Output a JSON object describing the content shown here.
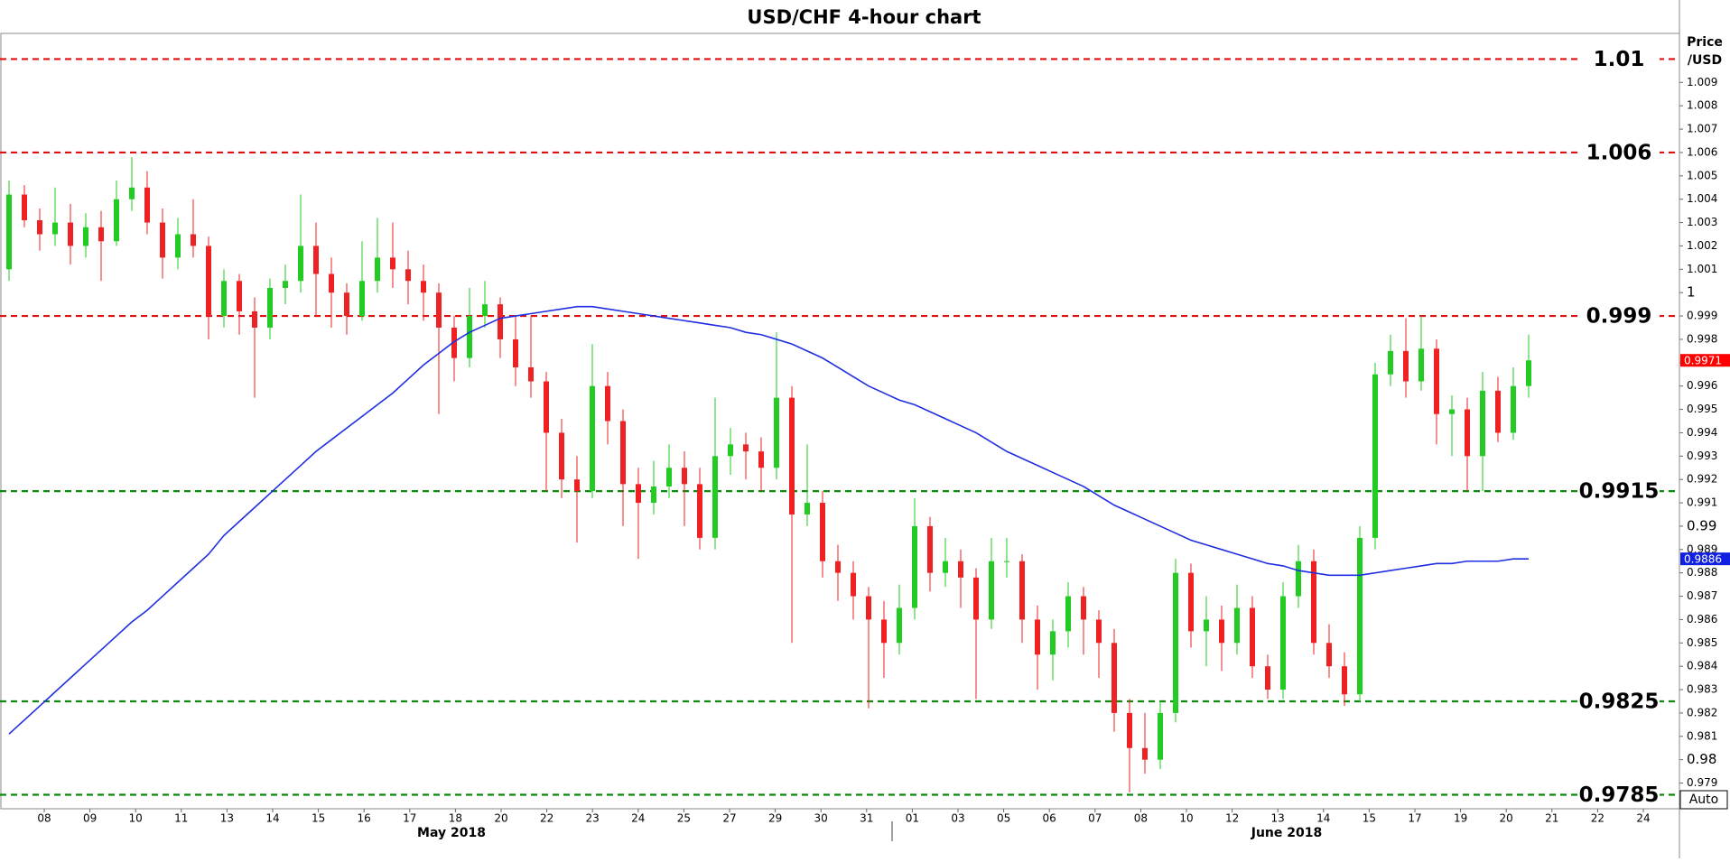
{
  "chart_data": {
    "type": "candlestick",
    "title": "USD/CHF 4-hour chart",
    "y_label_lines": [
      "Price",
      "/USD"
    ],
    "categories": [
      "08",
      "09",
      "10",
      "11",
      "13",
      "14",
      "15",
      "16",
      "17",
      "18",
      "20",
      "22",
      "23",
      "24",
      "25",
      "27",
      "29",
      "30",
      "31",
      "01",
      "03",
      "05",
      "06",
      "07",
      "08",
      "10",
      "12",
      "13",
      "14",
      "15",
      "17",
      "19",
      "20",
      "21",
      "22",
      "24"
    ],
    "months": [
      "May 2018",
      "June 2018"
    ],
    "up_color": "#22cc22",
    "down_color": "#ee2222",
    "open": [
      1.001,
      1.0042,
      1.0031,
      1.0025,
      1.003,
      1.002,
      1.0028,
      1.0022,
      1.004,
      1.0045,
      1.003,
      1.0015,
      1.0025,
      1.002,
      0.999,
      1.0005,
      0.9992,
      0.9985,
      1.0002,
      1.0005,
      1.002,
      1.0008,
      1.0,
      0.999,
      1.0005,
      1.0015,
      1.001,
      1.0005,
      1.0,
      0.9985,
      0.9972,
      0.999,
      0.9995,
      0.998,
      0.9968,
      0.9962,
      0.994,
      0.992,
      0.9915,
      0.996,
      0.9945,
      0.9918,
      0.991,
      0.9917,
      0.9925,
      0.9918,
      0.9895,
      0.993,
      0.9935,
      0.9932,
      0.9925,
      0.9955,
      0.9905,
      0.991,
      0.9885,
      0.988,
      0.987,
      0.986,
      0.985,
      0.9865,
      0.99,
      0.988,
      0.9885,
      0.9878,
      0.986,
      0.9885,
      0.9885,
      0.986,
      0.9845,
      0.9855,
      0.987,
      0.986,
      0.985,
      0.982,
      0.9805,
      0.98,
      0.982,
      0.988,
      0.9855,
      0.986,
      0.985,
      0.9865,
      0.984,
      0.983,
      0.987,
      0.9885,
      0.985,
      0.984,
      0.9828,
      0.9895,
      0.9965,
      0.9975,
      0.9962,
      0.9976,
      0.9948,
      0.995,
      0.993,
      0.9958,
      0.994,
      0.996
    ],
    "high": [
      1.0048,
      1.0046,
      1.0036,
      1.0045,
      1.0038,
      1.0034,
      1.0035,
      1.0048,
      1.0058,
      1.0052,
      1.0036,
      1.0032,
      1.004,
      1.0024,
      1.001,
      1.0008,
      0.9998,
      1.0006,
      1.0012,
      1.0042,
      1.003,
      1.0015,
      1.0004,
      1.0022,
      1.0032,
      1.003,
      1.0018,
      1.0012,
      1.0004,
      0.999,
      1.0002,
      1.0005,
      0.9998,
      0.999,
      0.999,
      0.9966,
      0.9946,
      0.993,
      0.9978,
      0.9966,
      0.995,
      0.9925,
      0.9928,
      0.9935,
      0.9932,
      0.9925,
      0.9955,
      0.9942,
      0.994,
      0.9938,
      0.9983,
      0.996,
      0.9935,
      0.9915,
      0.9892,
      0.9885,
      0.9874,
      0.9868,
      0.9875,
      0.9912,
      0.9904,
      0.9895,
      0.989,
      0.9882,
      0.9895,
      0.9895,
      0.9888,
      0.9866,
      0.986,
      0.9876,
      0.9874,
      0.9864,
      0.9856,
      0.9826,
      0.982,
      0.9825,
      0.9886,
      0.9884,
      0.987,
      0.9866,
      0.9875,
      0.987,
      0.9845,
      0.9876,
      0.9892,
      0.989,
      0.9858,
      0.9846,
      0.99,
      0.997,
      0.9982,
      0.9989,
      0.999,
      0.998,
      0.9956,
      0.9955,
      0.9966,
      0.9964,
      0.9968,
      0.9982
    ],
    "low": [
      1.0005,
      1.0028,
      1.0018,
      1.002,
      1.0012,
      1.0015,
      1.0005,
      1.002,
      1.0035,
      1.0025,
      1.0006,
      1.001,
      1.0015,
      0.998,
      0.9985,
      0.9982,
      0.9955,
      0.998,
      0.9995,
      1.0,
      0.999,
      0.9985,
      0.9982,
      0.9988,
      1.0,
      1.0002,
      0.9995,
      0.9988,
      0.9948,
      0.9962,
      0.9968,
      0.9985,
      0.9972,
      0.996,
      0.9955,
      0.9915,
      0.9912,
      0.9893,
      0.9912,
      0.9935,
      0.99,
      0.9886,
      0.9905,
      0.9912,
      0.99,
      0.989,
      0.989,
      0.9922,
      0.992,
      0.9915,
      0.992,
      0.985,
      0.99,
      0.9878,
      0.9868,
      0.986,
      0.9822,
      0.9835,
      0.9845,
      0.986,
      0.9872,
      0.9874,
      0.9865,
      0.9826,
      0.9856,
      0.9878,
      0.985,
      0.983,
      0.9834,
      0.9848,
      0.9845,
      0.9835,
      0.9812,
      0.9786,
      0.9794,
      0.9796,
      0.9816,
      0.9848,
      0.984,
      0.9838,
      0.9845,
      0.9835,
      0.9826,
      0.9826,
      0.9865,
      0.9845,
      0.9835,
      0.9823,
      0.9825,
      0.989,
      0.996,
      0.9955,
      0.9958,
      0.9935,
      0.993,
      0.9915,
      0.9915,
      0.9936,
      0.9937,
      0.9955
    ],
    "close": [
      1.0042,
      1.0031,
      1.0025,
      1.003,
      1.002,
      1.0028,
      1.0022,
      1.004,
      1.0045,
      1.003,
      1.0015,
      1.0025,
      1.002,
      0.999,
      1.0005,
      0.9992,
      0.9985,
      1.0002,
      1.0005,
      1.002,
      1.0008,
      1.0,
      0.999,
      1.0005,
      1.0015,
      1.001,
      1.0005,
      1.0,
      0.9985,
      0.9972,
      0.999,
      0.9995,
      0.998,
      0.9968,
      0.9962,
      0.994,
      0.992,
      0.9915,
      0.996,
      0.9945,
      0.9918,
      0.991,
      0.9917,
      0.9925,
      0.9918,
      0.9895,
      0.993,
      0.9935,
      0.9932,
      0.9925,
      0.9955,
      0.9905,
      0.991,
      0.9885,
      0.988,
      0.987,
      0.986,
      0.985,
      0.9865,
      0.99,
      0.988,
      0.9885,
      0.9878,
      0.986,
      0.9885,
      0.9885,
      0.986,
      0.9845,
      0.9855,
      0.987,
      0.986,
      0.985,
      0.982,
      0.9805,
      0.98,
      0.982,
      0.988,
      0.9855,
      0.986,
      0.985,
      0.9865,
      0.984,
      0.983,
      0.987,
      0.9885,
      0.985,
      0.984,
      0.9828,
      0.9895,
      0.9965,
      0.9975,
      0.9962,
      0.9976,
      0.9948,
      0.995,
      0.993,
      0.9958,
      0.994,
      0.996,
      0.9971
    ],
    "moving_average": {
      "color": "#1f2ee0",
      "values": [
        0.9811,
        0.9817,
        0.9823,
        0.9829,
        0.9835,
        0.9841,
        0.9847,
        0.9853,
        0.9859,
        0.9864,
        0.987,
        0.9876,
        0.9882,
        0.9888,
        0.9896,
        0.9902,
        0.9908,
        0.9914,
        0.992,
        0.9926,
        0.9932,
        0.9937,
        0.9942,
        0.9947,
        0.9952,
        0.9957,
        0.9963,
        0.9969,
        0.9974,
        0.9979,
        0.9983,
        0.9986,
        0.9989,
        0.999,
        0.9991,
        0.9992,
        0.9993,
        0.9994,
        0.9994,
        0.9993,
        0.9992,
        0.9991,
        0.999,
        0.9989,
        0.9988,
        0.9987,
        0.9986,
        0.9985,
        0.9983,
        0.9982,
        0.998,
        0.9978,
        0.9975,
        0.9972,
        0.9968,
        0.9964,
        0.996,
        0.9957,
        0.9954,
        0.9952,
        0.9949,
        0.9946,
        0.9943,
        0.994,
        0.9936,
        0.9932,
        0.9929,
        0.9926,
        0.9923,
        0.992,
        0.9917,
        0.9913,
        0.9909,
        0.9906,
        0.9903,
        0.99,
        0.9897,
        0.9894,
        0.9892,
        0.989,
        0.9888,
        0.9886,
        0.9884,
        0.9883,
        0.9881,
        0.988,
        0.9879,
        0.9879,
        0.9879,
        0.988,
        0.9881,
        0.9882,
        0.9883,
        0.9884,
        0.9884,
        0.9885,
        0.9885,
        0.9885,
        0.9886,
        0.9886
      ]
    },
    "levels": [
      {
        "value": 1.01,
        "color": "#e01010"
      },
      {
        "value": 1.006,
        "color": "#e01010"
      },
      {
        "value": 0.999,
        "color": "#e01010"
      },
      {
        "value": 0.9915,
        "color": "#0a8a0a"
      },
      {
        "value": 0.9825,
        "color": "#0a8a0a"
      },
      {
        "value": 0.9785,
        "color": "#0a8a0a"
      }
    ],
    "price_labels": [
      {
        "value": 0.9971,
        "color": "#ff0000"
      },
      {
        "value": 0.9886,
        "color": "#1020e0"
      }
    ],
    "ylim": [
      0.9779,
      1.0111
    ],
    "yticks": [
      0.979,
      0.98,
      0.981,
      0.982,
      0.983,
      0.984,
      0.985,
      0.986,
      0.987,
      0.988,
      0.989,
      0.99,
      0.991,
      0.992,
      0.993,
      0.994,
      0.995,
      0.996,
      0.997,
      0.998,
      0.999,
      1,
      1.001,
      1.002,
      1.003,
      1.004,
      1.005,
      1.006,
      1.007,
      1.008,
      1.009
    ],
    "auto_button": "Auto"
  }
}
